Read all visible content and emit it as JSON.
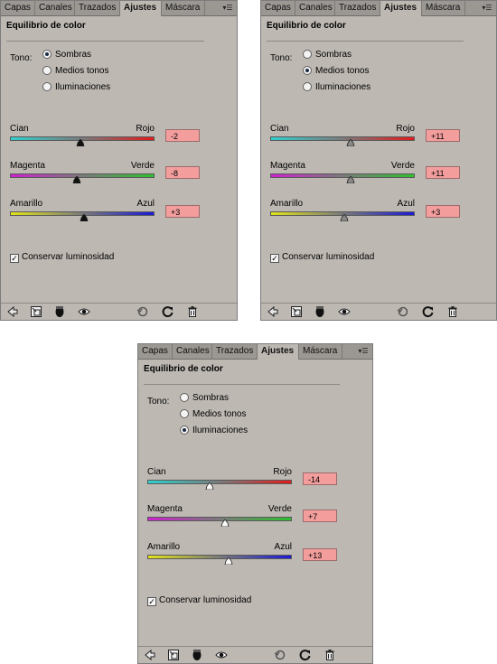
{
  "panels": [
    {
      "tabs": [
        "Capas",
        "Canales",
        "Trazados",
        "Ajustes",
        "Máscara"
      ],
      "active_tab": 3,
      "title": "Equilibrio de color",
      "tono_label": "Tono:",
      "tone_options": [
        "Sombras",
        "Medios tonos",
        "Iluminaciones"
      ],
      "selected_tone": 0,
      "sliders": [
        {
          "left": "Cian",
          "right": "Rojo",
          "value": "-2",
          "level": -2,
          "left_color": "#2fd1cf",
          "right_color": "#e21a1a"
        },
        {
          "left": "Magenta",
          "right": "Verde",
          "value": "-8",
          "level": -8,
          "left_color": "#d020d0",
          "right_color": "#2ec02e"
        },
        {
          "left": "Amarillo",
          "right": "Azul",
          "value": "+3",
          "level": 3,
          "left_color": "#e3e31a",
          "right_color": "#1a1ad6"
        }
      ],
      "preserve_label": "Conservar luminosidad",
      "preserve_checked": true,
      "thumb_style": "filled"
    },
    {
      "tabs": [
        "Capas",
        "Canales",
        "Trazados",
        "Ajustes",
        "Máscara"
      ],
      "active_tab": 3,
      "title": "Equilibrio de color",
      "tono_label": "Tono:",
      "tone_options": [
        "Sombras",
        "Medios tonos",
        "Iluminaciones"
      ],
      "selected_tone": 1,
      "sliders": [
        {
          "left": "Cian",
          "right": "Rojo",
          "value": "+11",
          "level": 11,
          "left_color": "#2fd1cf",
          "right_color": "#e21a1a"
        },
        {
          "left": "Magenta",
          "right": "Verde",
          "value": "+11",
          "level": 11,
          "left_color": "#d020d0",
          "right_color": "#2ec02e"
        },
        {
          "left": "Amarillo",
          "right": "Azul",
          "value": "+3",
          "level": 3,
          "left_color": "#e3e31a",
          "right_color": "#1a1ad6"
        }
      ],
      "preserve_label": "Conservar luminosidad",
      "preserve_checked": true,
      "thumb_style": "gray"
    },
    {
      "tabs": [
        "Capas",
        "Canales",
        "Trazados",
        "Ajustes",
        "Máscara"
      ],
      "active_tab": 3,
      "title": "Equilibrio de color",
      "tono_label": "Tono:",
      "tone_options": [
        "Sombras",
        "Medios tonos",
        "Iluminaciones"
      ],
      "selected_tone": 2,
      "sliders": [
        {
          "left": "Cian",
          "right": "Rojo",
          "value": "-14",
          "level": -14,
          "left_color": "#2fd1cf",
          "right_color": "#e21a1a"
        },
        {
          "left": "Magenta",
          "right": "Verde",
          "value": "+7",
          "level": 7,
          "left_color": "#d020d0",
          "right_color": "#2ec02e"
        },
        {
          "left": "Amarillo",
          "right": "Azul",
          "value": "+13",
          "level": 13,
          "left_color": "#e3e31a",
          "right_color": "#1a1ad6"
        }
      ],
      "preserve_label": "Conservar luminosidad",
      "preserve_checked": true,
      "thumb_style": "white"
    }
  ],
  "slider_range": [
    -100,
    100
  ],
  "footer_icons": [
    "back-arrow-icon",
    "expand-view-icon",
    "mask-clip-icon",
    "visibility-eye-icon",
    "reset-view-icon",
    "reset-rotate-icon",
    "trash-icon"
  ]
}
